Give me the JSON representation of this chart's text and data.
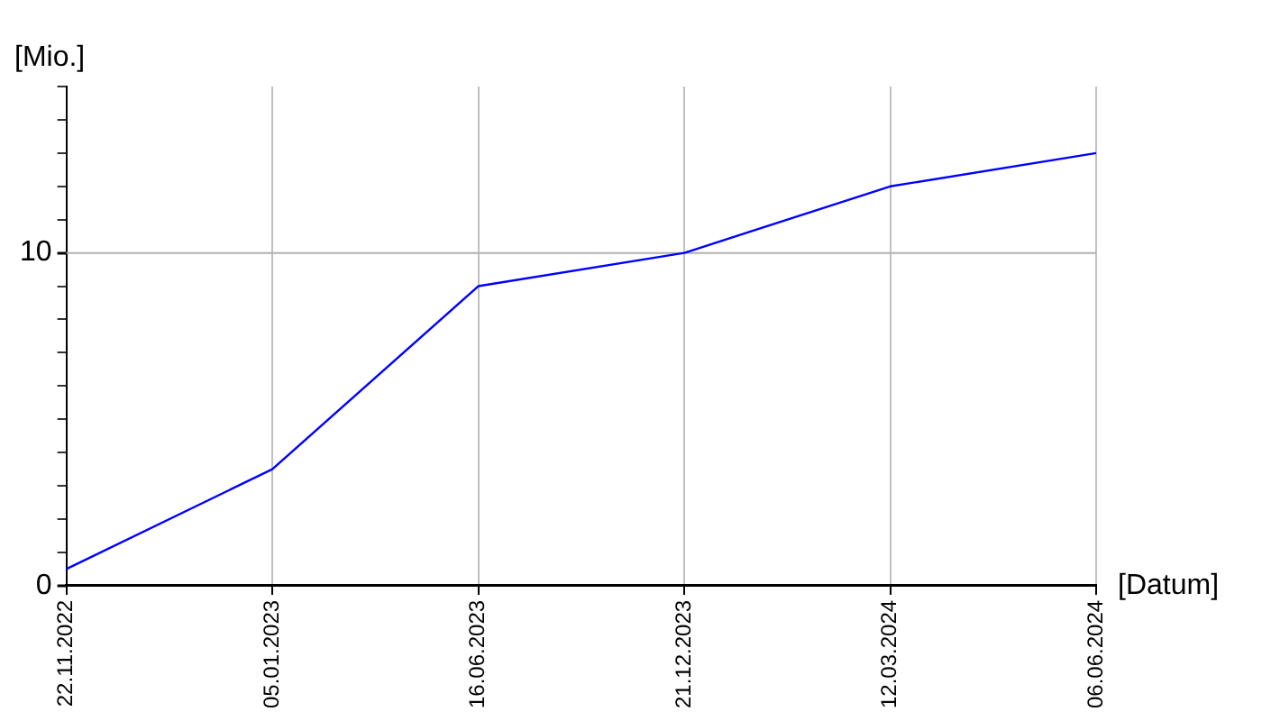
{
  "chart_data": {
    "type": "line",
    "xlabel": "[Datum]",
    "ylabel": "[Mio.]",
    "categories": [
      "22.11.2022",
      "05.01.2023",
      "16.06.2023",
      "21.12.2023",
      "12.03.2024",
      "06.06.2024"
    ],
    "series": [
      {
        "color": "#0000ff",
        "values": [
          0.5,
          3.5,
          9,
          10,
          12,
          13
        ]
      }
    ],
    "ylim": [
      0,
      15
    ],
    "yticks": [
      0,
      {
        "value": 1,
        "label": null
      },
      {
        "value": 2,
        "label": null
      },
      {
        "value": 3,
        "label": null
      },
      {
        "value": 4,
        "label": null
      },
      {
        "value": 5,
        "label": null
      },
      {
        "value": 6,
        "label": null
      },
      {
        "value": 7,
        "label": null
      },
      {
        "value": 8,
        "label": null
      },
      {
        "value": 9,
        "label": null
      },
      10,
      {
        "value": 11,
        "label": null
      },
      {
        "value": 12,
        "label": null
      },
      {
        "value": 13,
        "label": null
      },
      {
        "value": 14,
        "label": null
      },
      {
        "value": 15,
        "label": null
      }
    ],
    "ref_lines": [
      {
        "axis": "y",
        "value": 10,
        "color": "#b0b0b0"
      }
    ],
    "grid": "x",
    "legend": false,
    "marker": "none",
    "line_style": "solid"
  }
}
